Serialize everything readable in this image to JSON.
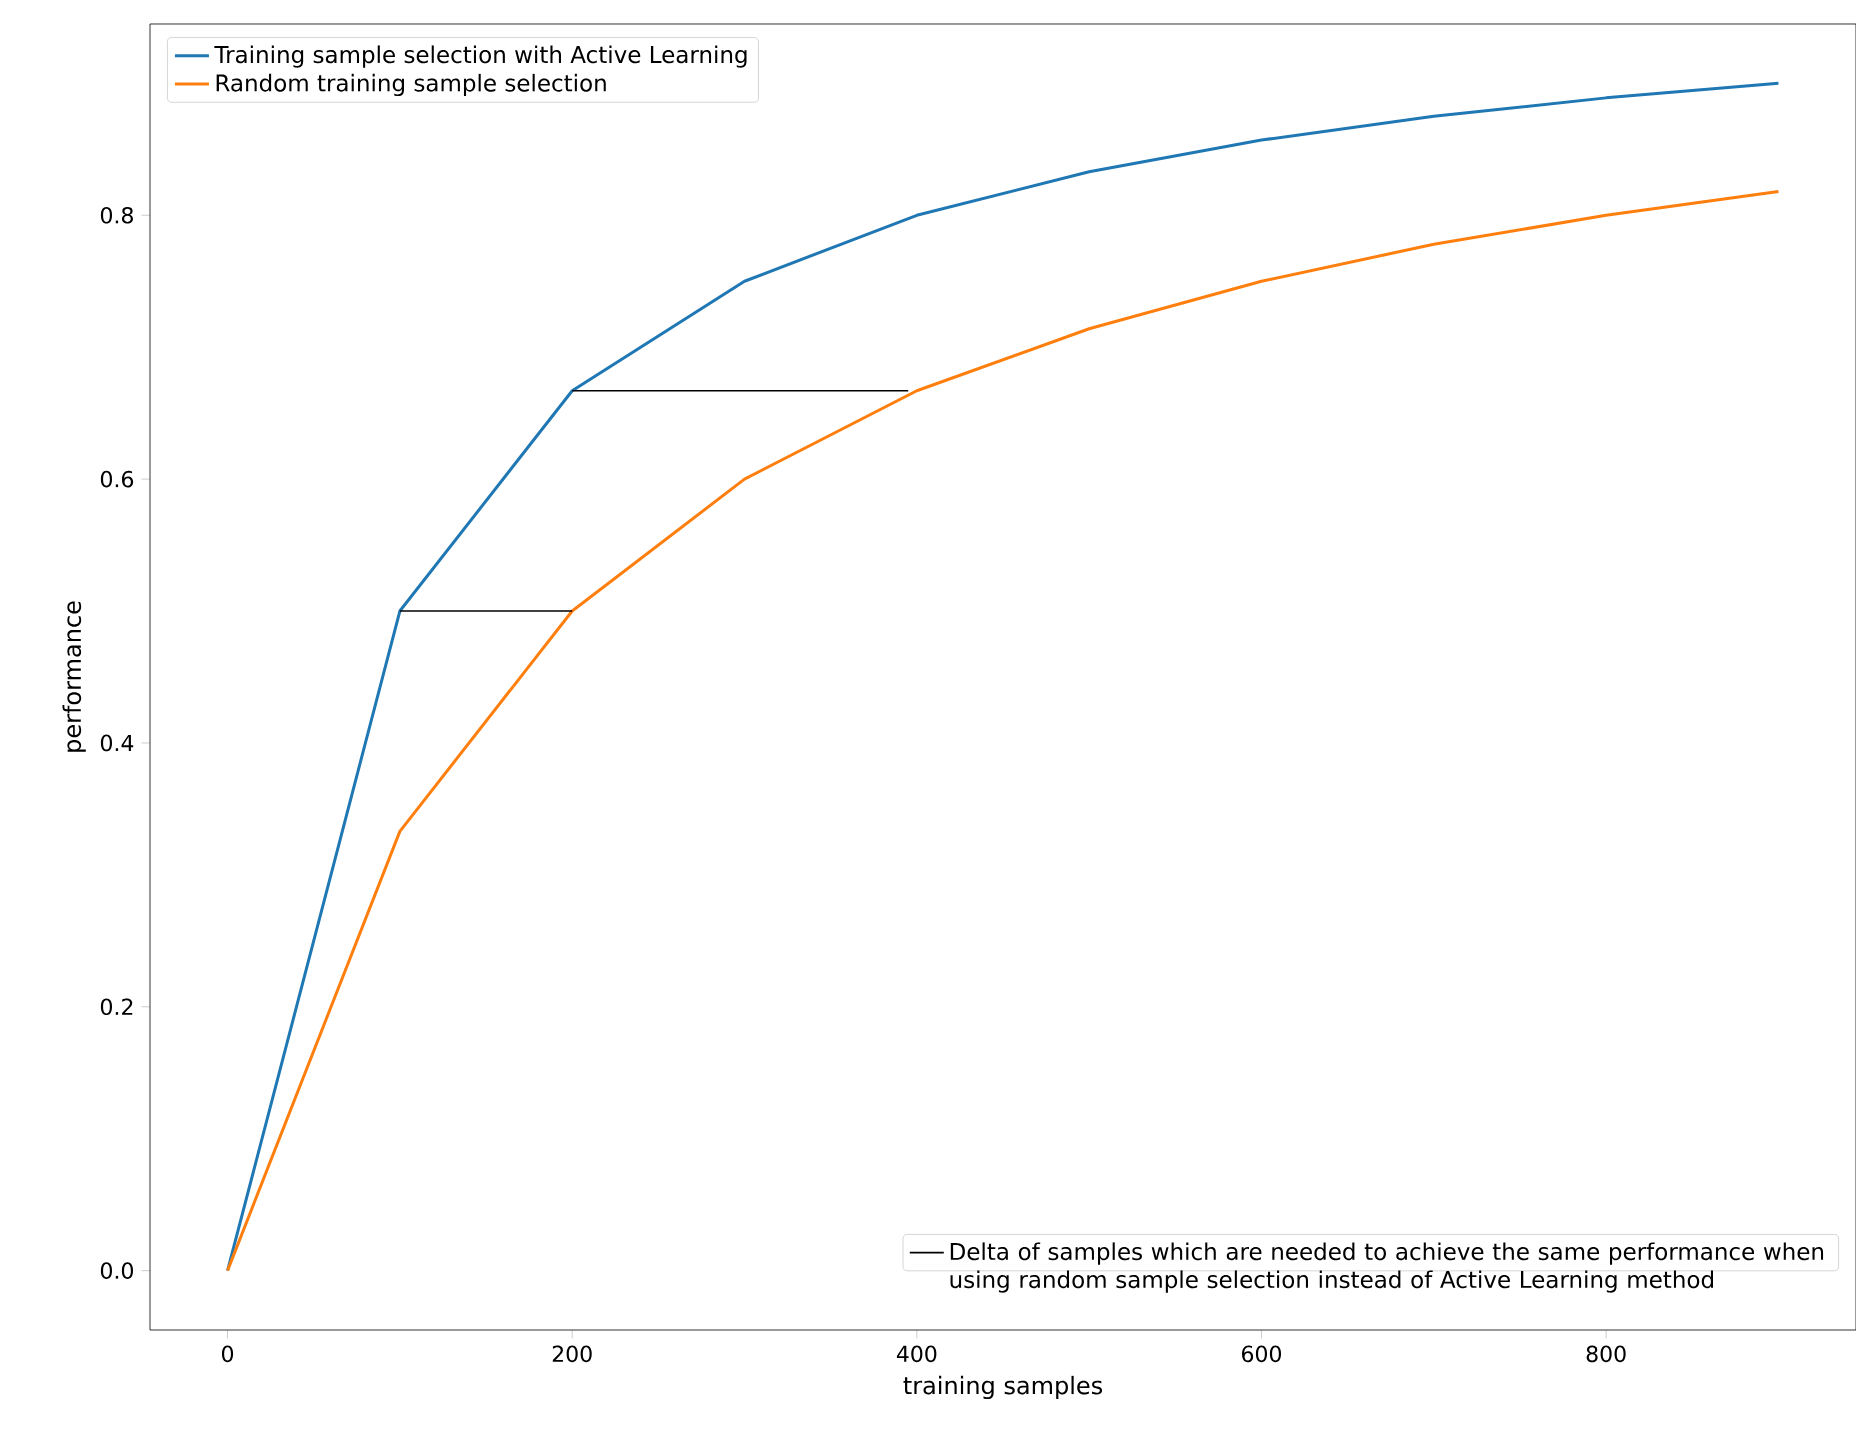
{
  "chart_data": {
    "type": "line",
    "xlabel": "training samples",
    "ylabel": "performance",
    "xlim": [
      -45,
      945
    ],
    "ylim": [
      -0.045,
      0.945
    ],
    "xticks": [
      0,
      200,
      400,
      600,
      800
    ],
    "yticks": [
      {
        "value": 0,
        "label": "0.0"
      },
      {
        "value": 0.2,
        "label": "0.2"
      },
      {
        "value": 0.4,
        "label": "0.4"
      },
      {
        "value": 0.6,
        "label": "0.6"
      },
      {
        "value": 0.8,
        "label": "0.8"
      }
    ],
    "legend": "top left",
    "grid": false,
    "marker": "none",
    "line_style": "solid",
    "series": [
      {
        "name": "Training sample selection with Active Learning",
        "color": "#1f77b4",
        "x": [
          0,
          100,
          200,
          300,
          400,
          500,
          600,
          700,
          800,
          900
        ],
        "values": [
          0,
          0.5,
          0.667,
          0.75,
          0.8,
          0.833,
          0.857,
          0.875,
          0.889,
          0.9
        ]
      },
      {
        "name": "Random training sample selection",
        "color": "#ff7f0e",
        "x": [
          0,
          100,
          200,
          300,
          400,
          500,
          600,
          700,
          800,
          900
        ],
        "values": [
          0,
          0.333,
          0.5,
          0.6,
          0.667,
          0.714,
          0.75,
          0.778,
          0.8,
          0.818
        ]
      },
      {
        "name": "Delta of samples which are needed to achieve the same performance when using random sample selection instead of Active Learning method",
        "color": "#000000",
        "x": [
          100,
          200
        ],
        "values": [
          0.5,
          0.5
        ]
      },
      {
        "color": "#000000",
        "x": [
          200,
          395
        ],
        "values": [
          0.667,
          0.667
        ]
      }
    ]
  }
}
